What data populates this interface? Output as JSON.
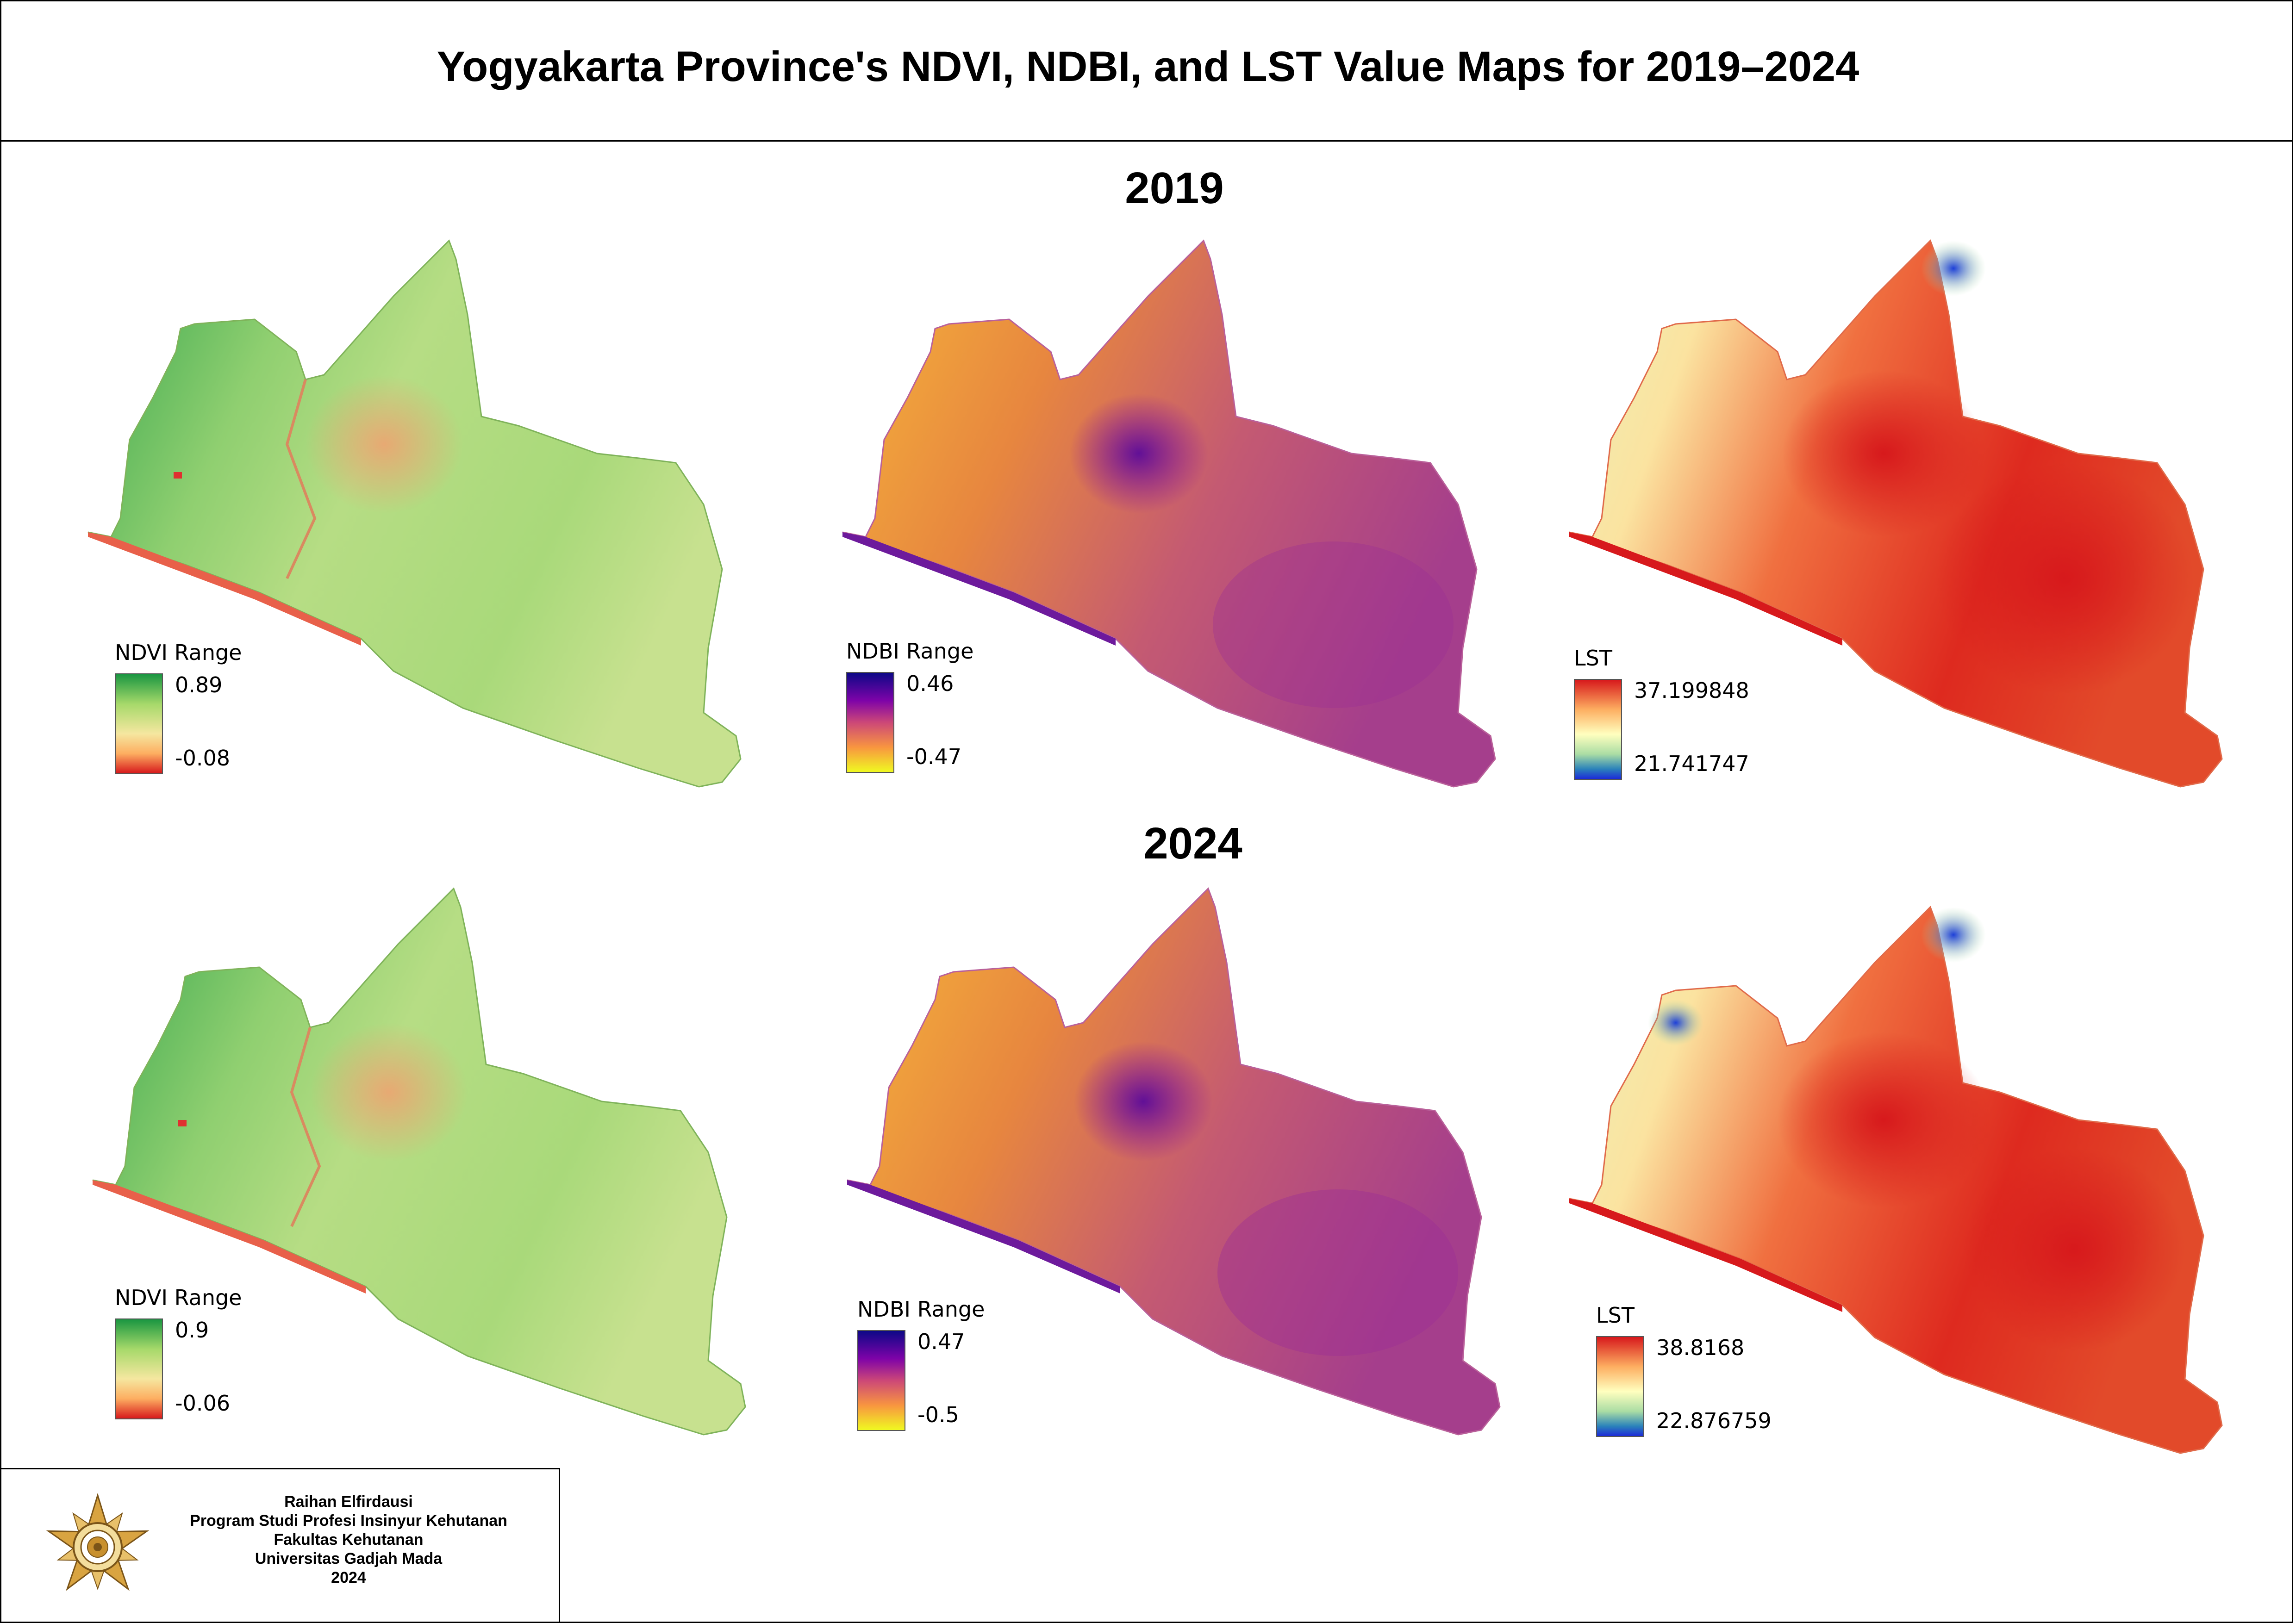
{
  "title": "Yogyakarta Province's NDVI, NDBI, and LST Value Maps for 2019–2024",
  "years": [
    {
      "label": "2019",
      "ndvi": {
        "legend_title": "NDVI Range",
        "max": "0.89",
        "min": "-0.08"
      },
      "ndbi": {
        "legend_title": "NDBI Range",
        "max": "0.46",
        "min": "-0.47"
      },
      "lst": {
        "legend_title": "LST",
        "max": "37.199848",
        "min": "21.741747"
      }
    },
    {
      "label": "2024",
      "ndvi": {
        "legend_title": "NDVI Range",
        "max": "0.9",
        "min": "-0.06"
      },
      "ndbi": {
        "legend_title": "NDBI Range",
        "max": "0.47",
        "min": "-0.5"
      },
      "lst": {
        "legend_title": "LST",
        "max": "38.8168",
        "min": "22.876759"
      }
    }
  ],
  "credit": {
    "name": "Raihan Elfirdausi",
    "program": "Program Studi Profesi Insinyur Kehutanan",
    "faculty": "Fakultas Kehutanan",
    "university": "Universitas Gadjah Mada",
    "year": "2024"
  },
  "colors": {
    "ndvi": [
      "#1a9641",
      "#a6d96a",
      "#f5e7a0",
      "#fdae61",
      "#d7191c"
    ],
    "ndbi": [
      "#0d0887",
      "#7e03a8",
      "#cc4778",
      "#f89540",
      "#f0f921"
    ],
    "lst": [
      "#d7191c",
      "#fdae61",
      "#ffffbf",
      "#abdda4",
      "#2b83ba"
    ]
  }
}
